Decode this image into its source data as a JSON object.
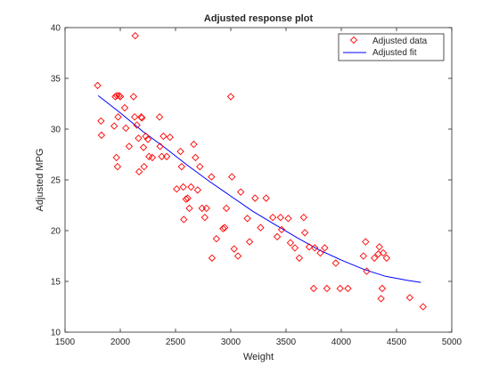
{
  "chart_data": {
    "type": "scatter",
    "title": "Adjusted response plot",
    "xlabel": "Weight",
    "ylabel": "Adjusted MPG",
    "xlim": [
      1500,
      5000
    ],
    "ylim": [
      10,
      40
    ],
    "xticks": [
      "1500",
      "2000",
      "2500",
      "3000",
      "3500",
      "4000",
      "4500",
      "5000"
    ],
    "yticks": [
      "10",
      "15",
      "20",
      "25",
      "30",
      "35",
      "40"
    ],
    "grid": false,
    "legend_position": "top-right",
    "series": [
      {
        "name": "Adjusted data",
        "kind": "scatter",
        "marker": "diamond-open",
        "color": "#ff0000",
        "points": [
          [
            1795,
            34.3
          ],
          [
            1825,
            30.8
          ],
          [
            1830,
            29.4
          ],
          [
            1945,
            30.3
          ],
          [
            1955,
            33.2
          ],
          [
            1965,
            27.2
          ],
          [
            1970,
            33.3
          ],
          [
            1975,
            26.3
          ],
          [
            1980,
            31.2
          ],
          [
            1990,
            33.3
          ],
          [
            2000,
            33.2
          ],
          [
            2040,
            32.1
          ],
          [
            2050,
            30.1
          ],
          [
            2080,
            28.3
          ],
          [
            2120,
            33.2
          ],
          [
            2130,
            31.2
          ],
          [
            2135,
            39.2
          ],
          [
            2150,
            30.4
          ],
          [
            2165,
            29.1
          ],
          [
            2170,
            25.8
          ],
          [
            2190,
            31.2
          ],
          [
            2195,
            31.1
          ],
          [
            2210,
            28.2
          ],
          [
            2215,
            26.3
          ],
          [
            2230,
            29.3
          ],
          [
            2250,
            29.0
          ],
          [
            2260,
            27.3
          ],
          [
            2290,
            27.2
          ],
          [
            2355,
            31.2
          ],
          [
            2360,
            28.3
          ],
          [
            2375,
            27.3
          ],
          [
            2390,
            29.3
          ],
          [
            2420,
            27.3
          ],
          [
            2450,
            29.2
          ],
          [
            2510,
            24.1
          ],
          [
            2545,
            27.8
          ],
          [
            2555,
            26.3
          ],
          [
            2570,
            24.3
          ],
          [
            2575,
            21.1
          ],
          [
            2595,
            23.1
          ],
          [
            2610,
            23.2
          ],
          [
            2625,
            22.2
          ],
          [
            2640,
            24.3
          ],
          [
            2665,
            28.5
          ],
          [
            2680,
            27.2
          ],
          [
            2700,
            24.0
          ],
          [
            2720,
            26.3
          ],
          [
            2740,
            22.2
          ],
          [
            2765,
            21.3
          ],
          [
            2780,
            22.2
          ],
          [
            2825,
            25.3
          ],
          [
            2830,
            17.3
          ],
          [
            2870,
            19.2
          ],
          [
            2930,
            20.2
          ],
          [
            2945,
            20.3
          ],
          [
            2960,
            22.2
          ],
          [
            3000,
            33.2
          ],
          [
            3010,
            25.3
          ],
          [
            3030,
            18.2
          ],
          [
            3065,
            17.5
          ],
          [
            3090,
            23.8
          ],
          [
            3150,
            21.2
          ],
          [
            3170,
            18.9
          ],
          [
            3220,
            23.2
          ],
          [
            3270,
            20.3
          ],
          [
            3320,
            23.2
          ],
          [
            3380,
            21.3
          ],
          [
            3420,
            19.4
          ],
          [
            3450,
            21.3
          ],
          [
            3460,
            20.1
          ],
          [
            3520,
            21.2
          ],
          [
            3540,
            18.8
          ],
          [
            3580,
            18.3
          ],
          [
            3620,
            17.3
          ],
          [
            3660,
            21.3
          ],
          [
            3670,
            19.8
          ],
          [
            3710,
            18.4
          ],
          [
            3750,
            14.3
          ],
          [
            3760,
            18.3
          ],
          [
            3810,
            17.8
          ],
          [
            3850,
            18.3
          ],
          [
            3870,
            14.3
          ],
          [
            3950,
            16.8
          ],
          [
            3990,
            14.3
          ],
          [
            4060,
            14.3
          ],
          [
            4200,
            17.5
          ],
          [
            4220,
            18.9
          ],
          [
            4230,
            16.0
          ],
          [
            4300,
            17.3
          ],
          [
            4335,
            17.7
          ],
          [
            4345,
            18.4
          ],
          [
            4360,
            13.3
          ],
          [
            4370,
            14.3
          ],
          [
            4380,
            17.8
          ],
          [
            4410,
            17.3
          ],
          [
            4620,
            13.4
          ],
          [
            4740,
            12.5
          ]
        ]
      },
      {
        "name": "Adjusted fit",
        "kind": "line",
        "color": "#0000ff",
        "points": [
          [
            1800,
            33.3
          ],
          [
            2000,
            31.6
          ],
          [
            2200,
            29.8
          ],
          [
            2400,
            28.2
          ],
          [
            2600,
            26.5
          ],
          [
            2800,
            24.9
          ],
          [
            3000,
            23.4
          ],
          [
            3200,
            21.9
          ],
          [
            3400,
            20.6
          ],
          [
            3600,
            19.3
          ],
          [
            3800,
            18.1
          ],
          [
            4000,
            17.1
          ],
          [
            4200,
            16.2
          ],
          [
            4400,
            15.5
          ],
          [
            4600,
            15.1
          ],
          [
            4720,
            14.9
          ]
        ]
      }
    ]
  }
}
